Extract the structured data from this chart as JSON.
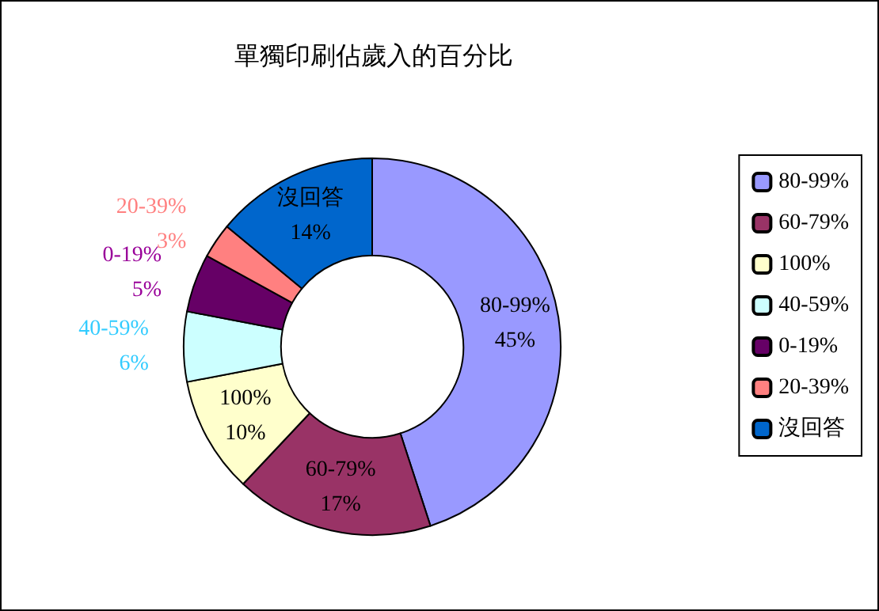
{
  "chart_data": {
    "type": "donut",
    "title": "單獨印刷佔歲入的百分比",
    "categories": [
      "80-99%",
      "60-79%",
      "100%",
      "40-59%",
      "0-19%",
      "20-39%",
      "沒回答"
    ],
    "values": [
      45,
      17,
      10,
      6,
      5,
      3,
      14
    ],
    "colors": [
      "#9999ff",
      "#993366",
      "#ffffcc",
      "#ccffff",
      "#660066",
      "#ff8080",
      "#0066cc"
    ],
    "value_labels": [
      "45%",
      "17%",
      "10%",
      "6%",
      "5%",
      "3%",
      "14%"
    ],
    "legend": "right"
  }
}
